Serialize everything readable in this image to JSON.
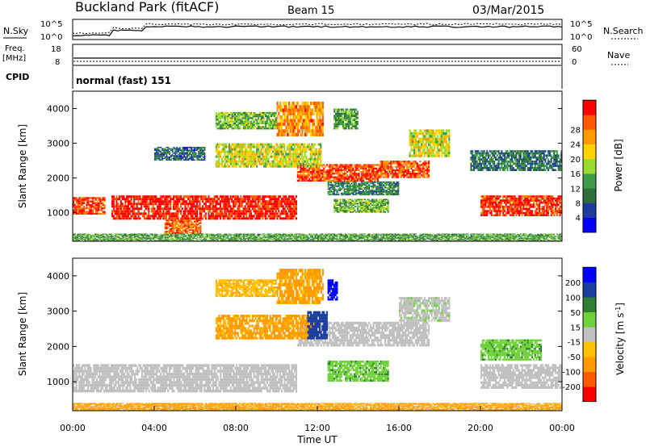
{
  "header": {
    "station": "Buckland Park (fitACF)",
    "beam": "Beam 15",
    "date": "03/Mar/2015"
  },
  "noise_panel": {
    "left_label": "N.Sky",
    "right_label": "N.Search",
    "y_ticks": [
      "10^5",
      "10^0"
    ]
  },
  "freq_panel": {
    "left_label_1": "Freq.",
    "left_label_2": "[MHz]",
    "right_label": "Nave",
    "left_ticks": [
      "18",
      "8"
    ],
    "right_ticks": [
      "60",
      "0"
    ]
  },
  "cpid": {
    "label": "CPID",
    "value": "normal (fast) 151"
  },
  "colors": {
    "power": [
      "#0000ff",
      "#1e3ca0",
      "#2f6f3a",
      "#3d9e47",
      "#9adb2f",
      "#ffd200",
      "#ff9a00",
      "#ff5a00",
      "#ff0000"
    ],
    "velocity": [
      "#ff0000",
      "#ff5a00",
      "#ff9a00",
      "#ffc000",
      "#c0c0c0",
      "#6fd23a",
      "#2f7f32",
      "#1a3fa0",
      "#0000ff"
    ]
  },
  "chart_data": [
    {
      "type": "heatmap",
      "name": "power",
      "xlabel": "",
      "ylabel": "Slant Range [km]",
      "x_range": [
        "00:00",
        "24:00"
      ],
      "ylim": [
        180,
        4500
      ],
      "y_ticks": [
        1000,
        2000,
        3000,
        4000
      ],
      "colorbar_label": "Power [dB]",
      "colorbar_ticks": [
        4,
        8,
        12,
        16,
        20,
        24,
        28
      ],
      "colorbar_range": [
        0,
        32
      ],
      "bands": [
        {
          "t0": 0.0,
          "t1": 1.6,
          "y0": 950,
          "y1": 1450,
          "level": 28
        },
        {
          "t0": 1.9,
          "t1": 11.0,
          "y0": 800,
          "y1": 1500,
          "level": 30
        },
        {
          "t0": 11.0,
          "t1": 15.0,
          "y0": 1900,
          "y1": 2400,
          "level": 28
        },
        {
          "t0": 15.0,
          "t1": 17.5,
          "y0": 2000,
          "y1": 2500,
          "level": 27
        },
        {
          "t0": 20.0,
          "t1": 24.0,
          "y0": 900,
          "y1": 1500,
          "level": 29
        },
        {
          "t0": 7.0,
          "t1": 12.2,
          "y0": 2300,
          "y1": 3000,
          "level": 18
        },
        {
          "t0": 10.0,
          "t1": 12.3,
          "y0": 3200,
          "y1": 4200,
          "level": 24
        },
        {
          "t0": 7.0,
          "t1": 10.0,
          "y0": 3400,
          "y1": 3900,
          "level": 14
        },
        {
          "t0": 4.0,
          "t1": 6.5,
          "y0": 2500,
          "y1": 2900,
          "level": 8
        },
        {
          "t0": 12.8,
          "t1": 14.0,
          "y0": 3400,
          "y1": 4000,
          "level": 12
        },
        {
          "t0": 12.5,
          "t1": 16.0,
          "y0": 1500,
          "y1": 1900,
          "level": 10
        },
        {
          "t0": 12.8,
          "t1": 15.5,
          "y0": 1000,
          "y1": 1400,
          "level": 14
        },
        {
          "t0": 16.5,
          "t1": 18.5,
          "y0": 2600,
          "y1": 3400,
          "level": 18
        },
        {
          "t0": 19.5,
          "t1": 24.0,
          "y0": 2200,
          "y1": 2800,
          "level": 9
        },
        {
          "t0": 4.5,
          "t1": 6.3,
          "y0": 400,
          "y1": 800,
          "level": 26
        },
        {
          "t0": 0.0,
          "t1": 24.0,
          "y0": 180,
          "y1": 400,
          "level": 12
        }
      ]
    },
    {
      "type": "heatmap",
      "name": "velocity",
      "xlabel": "Time UT",
      "ylabel": "Slant Range [km]",
      "x_range": [
        "00:00",
        "24:00"
      ],
      "ylim": [
        180,
        4500
      ],
      "y_ticks": [
        1000,
        2000,
        3000,
        4000
      ],
      "x_ticks": [
        "00:00",
        "04:00",
        "08:00",
        "12:00",
        "16:00",
        "20:00",
        "00:00"
      ],
      "colorbar_label": "Velocity [m s^-1]",
      "colorbar_ticks": [
        -200,
        -100,
        -50,
        -15,
        15,
        50,
        100,
        200
      ],
      "bands": [
        {
          "t0": 0.0,
          "t1": 11.0,
          "y0": 700,
          "y1": 1500,
          "value": 0
        },
        {
          "t0": 11.0,
          "t1": 17.5,
          "y0": 2000,
          "y1": 2700,
          "value": 0
        },
        {
          "t0": 20.0,
          "t1": 24.0,
          "y0": 800,
          "y1": 1500,
          "value": 0
        },
        {
          "t0": 7.0,
          "t1": 12.0,
          "y0": 2200,
          "y1": 2900,
          "value": -60
        },
        {
          "t0": 10.0,
          "t1": 12.3,
          "y0": 3200,
          "y1": 4200,
          "value": -60
        },
        {
          "t0": 7.0,
          "t1": 10.0,
          "y0": 3400,
          "y1": 3900,
          "value": -40
        },
        {
          "t0": 12.5,
          "t1": 13.0,
          "y0": 3300,
          "y1": 3900,
          "value": 220
        },
        {
          "t0": 11.5,
          "t1": 12.5,
          "y0": 2200,
          "y1": 3000,
          "value": 150
        },
        {
          "t0": 12.5,
          "t1": 15.5,
          "y0": 1000,
          "y1": 1600,
          "value": 40
        },
        {
          "t0": 20.0,
          "t1": 23.0,
          "y0": 1600,
          "y1": 2200,
          "value": 40
        },
        {
          "t0": 16.0,
          "t1": 18.5,
          "y0": 2700,
          "y1": 3400,
          "value": 5
        },
        {
          "t0": 0.0,
          "t1": 24.0,
          "y0": 180,
          "y1": 400,
          "value": -60
        }
      ]
    }
  ]
}
